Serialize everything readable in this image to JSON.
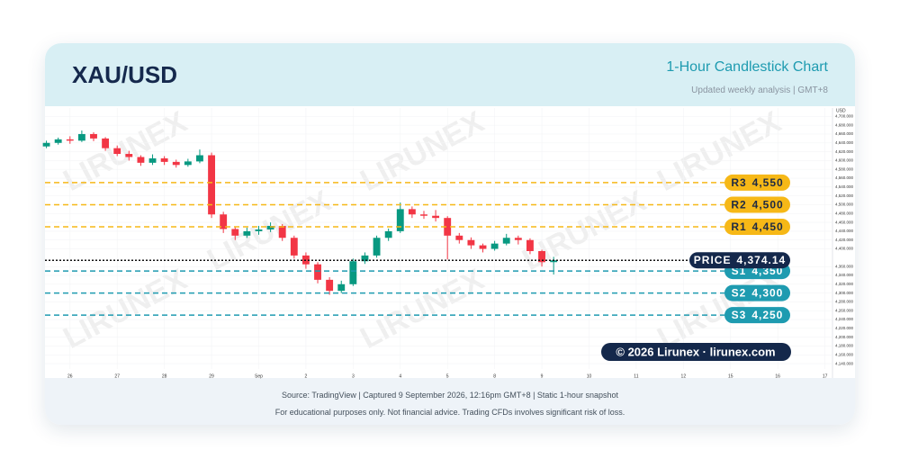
{
  "header": {
    "title": "XAU/USD",
    "subtitle": "1-Hour Candlestick Chart",
    "note": "Updated weekly analysis | GMT+8"
  },
  "chart_data": {
    "type": "candlestick",
    "y_axis_label": "USD",
    "watermark": "LIRUNEX",
    "copyright": "© 2026 Lirunex · lirunex.com",
    "up_color": "#089981",
    "down_color": "#f23645",
    "xlim": [
      -0.53,
      16.16
    ],
    "xticks": [
      {
        "value": 0,
        "label": "26"
      },
      {
        "value": 1,
        "label": "27"
      },
      {
        "value": 2,
        "label": "28"
      },
      {
        "value": 3,
        "label": "29"
      },
      {
        "value": 4,
        "label": "Sep"
      },
      {
        "value": 5,
        "label": "2"
      },
      {
        "value": 6,
        "label": "3"
      },
      {
        "value": 7,
        "label": "4"
      },
      {
        "value": 8,
        "label": "5"
      },
      {
        "value": 9,
        "label": "8"
      },
      {
        "value": 10,
        "label": "9"
      },
      {
        "value": 11,
        "label": "10"
      },
      {
        "value": 12,
        "label": "11"
      },
      {
        "value": 13,
        "label": "12"
      },
      {
        "value": 14,
        "label": "15"
      },
      {
        "value": 15,
        "label": "16"
      },
      {
        "value": 16,
        "label": "17"
      }
    ],
    "ylim": [
      4128,
      4719
    ],
    "yticks": [
      {
        "value": 4140,
        "label": "4,140.000"
      },
      {
        "value": 4160,
        "label": "4,160.000"
      },
      {
        "value": 4180,
        "label": "4,180.000"
      },
      {
        "value": 4200,
        "label": "4,200.000"
      },
      {
        "value": 4220,
        "label": "4,220.000"
      },
      {
        "value": 4240,
        "label": "4,240.000"
      },
      {
        "value": 4260,
        "label": "4,260.000"
      },
      {
        "value": 4280,
        "label": "4,280.000"
      },
      {
        "value": 4300,
        "label": "4,300.000"
      },
      {
        "value": 4320,
        "label": "4,320.000"
      },
      {
        "value": 4340,
        "label": "4,340.000"
      },
      {
        "value": 4360,
        "label": "4,360.000"
      },
      {
        "value": 4400,
        "label": "4,400.000"
      },
      {
        "value": 4420,
        "label": "4,420.000"
      },
      {
        "value": 4440,
        "label": "4,440.000"
      },
      {
        "value": 4460,
        "label": "4,460.000"
      },
      {
        "value": 4480,
        "label": "4,480.000"
      },
      {
        "value": 4500,
        "label": "4,500.000"
      },
      {
        "value": 4520,
        "label": "4,520.000"
      },
      {
        "value": 4540,
        "label": "4,540.000"
      },
      {
        "value": 4560,
        "label": "4,560.000"
      },
      {
        "value": 4580,
        "label": "4,580.000"
      },
      {
        "value": 4600,
        "label": "4,600.000"
      },
      {
        "value": 4620,
        "label": "4,620.000"
      },
      {
        "value": 4640,
        "label": "4,640.000"
      },
      {
        "value": 4660,
        "label": "4,660.000"
      },
      {
        "value": 4680,
        "label": "4,680.000"
      },
      {
        "value": 4700,
        "label": "4,700.000"
      }
    ],
    "candles": [
      {
        "x": -0.5,
        "open": 4632,
        "high": 4645,
        "low": 4628,
        "close": 4640
      },
      {
        "x": -0.25,
        "open": 4640,
        "high": 4652,
        "low": 4636,
        "close": 4648
      },
      {
        "x": 0,
        "open": 4648,
        "high": 4655,
        "low": 4638,
        "close": 4645
      },
      {
        "x": 0.25,
        "open": 4645,
        "high": 4668,
        "low": 4642,
        "close": 4660
      },
      {
        "x": 0.5,
        "open": 4660,
        "high": 4664,
        "low": 4644,
        "close": 4650
      },
      {
        "x": 0.75,
        "open": 4650,
        "high": 4653,
        "low": 4622,
        "close": 4628
      },
      {
        "x": 1,
        "open": 4628,
        "high": 4634,
        "low": 4610,
        "close": 4615
      },
      {
        "x": 1.25,
        "open": 4615,
        "high": 4622,
        "low": 4600,
        "close": 4608
      },
      {
        "x": 1.5,
        "open": 4608,
        "high": 4612,
        "low": 4588,
        "close": 4595
      },
      {
        "x": 1.75,
        "open": 4595,
        "high": 4614,
        "low": 4590,
        "close": 4605
      },
      {
        "x": 2,
        "open": 4605,
        "high": 4610,
        "low": 4590,
        "close": 4597
      },
      {
        "x": 2.25,
        "open": 4597,
        "high": 4602,
        "low": 4584,
        "close": 4590
      },
      {
        "x": 2.5,
        "open": 4590,
        "high": 4604,
        "low": 4586,
        "close": 4598
      },
      {
        "x": 2.75,
        "open": 4598,
        "high": 4625,
        "low": 4594,
        "close": 4612
      },
      {
        "x": 3,
        "open": 4612,
        "high": 4618,
        "low": 4470,
        "close": 4478
      },
      {
        "x": 3.25,
        "open": 4478,
        "high": 4484,
        "low": 4436,
        "close": 4445
      },
      {
        "x": 3.5,
        "open": 4445,
        "high": 4450,
        "low": 4420,
        "close": 4430
      },
      {
        "x": 3.75,
        "open": 4430,
        "high": 4448,
        "low": 4425,
        "close": 4440
      },
      {
        "x": 4,
        "open": 4440,
        "high": 4452,
        "low": 4432,
        "close": 4444
      },
      {
        "x": 4.25,
        "open": 4444,
        "high": 4460,
        "low": 4438,
        "close": 4452
      },
      {
        "x": 4.5,
        "open": 4452,
        "high": 4456,
        "low": 4418,
        "close": 4425
      },
      {
        "x": 4.75,
        "open": 4425,
        "high": 4430,
        "low": 4378,
        "close": 4385
      },
      {
        "x": 5,
        "open": 4385,
        "high": 4392,
        "low": 4355,
        "close": 4365
      },
      {
        "x": 5.25,
        "open": 4365,
        "high": 4370,
        "low": 4322,
        "close": 4330
      },
      {
        "x": 5.5,
        "open": 4330,
        "high": 4336,
        "low": 4296,
        "close": 4305
      },
      {
        "x": 5.75,
        "open": 4305,
        "high": 4328,
        "low": 4300,
        "close": 4320
      },
      {
        "x": 6,
        "open": 4320,
        "high": 4378,
        "low": 4316,
        "close": 4372
      },
      {
        "x": 6.25,
        "open": 4372,
        "high": 4392,
        "low": 4366,
        "close": 4385
      },
      {
        "x": 6.5,
        "open": 4385,
        "high": 4430,
        "low": 4380,
        "close": 4425
      },
      {
        "x": 6.75,
        "open": 4425,
        "high": 4446,
        "low": 4418,
        "close": 4440
      },
      {
        "x": 7,
        "open": 4440,
        "high": 4505,
        "low": 4436,
        "close": 4490
      },
      {
        "x": 7.25,
        "open": 4490,
        "high": 4496,
        "low": 4470,
        "close": 4478
      },
      {
        "x": 7.5,
        "open": 4478,
        "high": 4486,
        "low": 4468,
        "close": 4475
      },
      {
        "x": 7.75,
        "open": 4475,
        "high": 4488,
        "low": 4462,
        "close": 4470
      },
      {
        "x": 8,
        "open": 4470,
        "high": 4474,
        "low": 4376,
        "close": 4430
      },
      {
        "x": 8.25,
        "open": 4430,
        "high": 4436,
        "low": 4412,
        "close": 4420
      },
      {
        "x": 8.5,
        "open": 4420,
        "high": 4426,
        "low": 4400,
        "close": 4408
      },
      {
        "x": 8.75,
        "open": 4408,
        "high": 4412,
        "low": 4392,
        "close": 4400
      },
      {
        "x": 9,
        "open": 4400,
        "high": 4418,
        "low": 4396,
        "close": 4412
      },
      {
        "x": 9.25,
        "open": 4412,
        "high": 4434,
        "low": 4408,
        "close": 4425
      },
      {
        "x": 9.5,
        "open": 4425,
        "high": 4430,
        "low": 4410,
        "close": 4420
      },
      {
        "x": 9.75,
        "open": 4420,
        "high": 4424,
        "low": 4388,
        "close": 4395
      },
      {
        "x": 10,
        "open": 4395,
        "high": 4398,
        "low": 4360,
        "close": 4370
      },
      {
        "x": 10.25,
        "open": 4370,
        "high": 4382,
        "low": 4342,
        "close": 4374.14
      }
    ],
    "levels": [
      {
        "name": "R3",
        "value": 4550,
        "value_label": "4,550",
        "color": "#f6b817",
        "text_color": "#1e2a44"
      },
      {
        "name": "R2",
        "value": 4500,
        "value_label": "4,500",
        "color": "#f6b817",
        "text_color": "#1e2a44"
      },
      {
        "name": "R1",
        "value": 4450,
        "value_label": "4,450",
        "color": "#f6b817",
        "text_color": "#1e2a44"
      },
      {
        "name": "S1",
        "value": 4350,
        "value_label": "4,350",
        "color": "#1e9bb0",
        "text_color": "#ffffff"
      },
      {
        "name": "S2",
        "value": 4300,
        "value_label": "4,300",
        "color": "#1e9bb0",
        "text_color": "#ffffff"
      },
      {
        "name": "S3",
        "value": 4250,
        "value_label": "4,250",
        "color": "#1e9bb0",
        "text_color": "#ffffff"
      }
    ],
    "price": {
      "name": "PRICE",
      "value": 4374.14,
      "value_label": "4,374.14",
      "color": "#14284b"
    }
  },
  "footer": {
    "source": "Source: TradingView | Captured 9 September 2026, 12:16pm GMT+8 | Static 1-hour snapshot",
    "disclaimer": "For educational purposes only. Not financial advice. Trading CFDs involves significant risk of loss."
  }
}
